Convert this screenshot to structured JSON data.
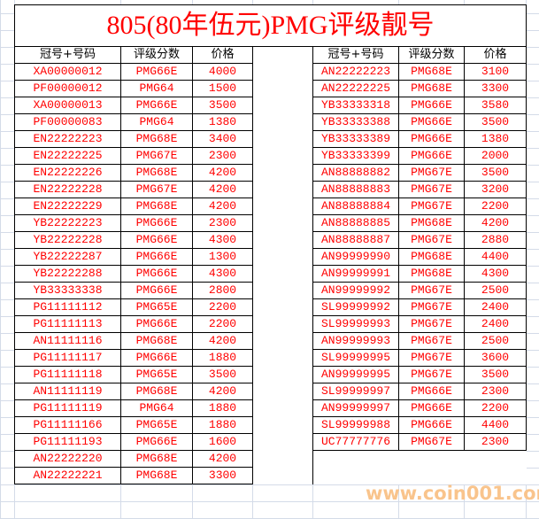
{
  "title": "805(80年伍元)PMG评级靓号",
  "headers": [
    "冠号+号码",
    "评级分数",
    "价格"
  ],
  "left_rows": [
    [
      "XA00000012",
      "PMG66E",
      "4000"
    ],
    [
      "PF00000012",
      "PMG64",
      "1500"
    ],
    [
      "XA00000013",
      "PMG66E",
      "3500"
    ],
    [
      "PF00000083",
      "PMG64",
      "1380"
    ],
    [
      "EN22222223",
      "PMG68E",
      "3400"
    ],
    [
      "EN22222225",
      "PMG67E",
      "2300"
    ],
    [
      "EN22222226",
      "PMG68E",
      "4200"
    ],
    [
      "EN22222228",
      "PMG67E",
      "4200"
    ],
    [
      "EN22222229",
      "PMG68E",
      "4200"
    ],
    [
      "YB22222223",
      "PMG66E",
      "2300"
    ],
    [
      "YB22222228",
      "PMG66E",
      "4300"
    ],
    [
      "YB22222287",
      "PMG66E",
      "1300"
    ],
    [
      "YB22222288",
      "PMG66E",
      "4300"
    ],
    [
      "YB33333338",
      "PMG66E",
      "2800"
    ],
    [
      "PG11111112",
      "PMG65E",
      "2200"
    ],
    [
      "PG11111113",
      "PMG66E",
      "2200"
    ],
    [
      "AN11111116",
      "PMG68E",
      "4200"
    ],
    [
      "PG11111117",
      "PMG66E",
      "1880"
    ],
    [
      "PG11111118",
      "PMG65E",
      "3500"
    ],
    [
      "AN11111119",
      "PMG68E",
      "4200"
    ],
    [
      "PG11111119",
      "PMG64",
      "1880"
    ],
    [
      "PG11111166",
      "PMG65E",
      "1880"
    ],
    [
      "PG11111193",
      "PMG66E",
      "1600"
    ],
    [
      "AN22222220",
      "PMG68E",
      "4200"
    ],
    [
      "AN22222221",
      "PMG68E",
      "3300"
    ]
  ],
  "right_rows": [
    [
      "AN22222223",
      "PMG68E",
      "3100"
    ],
    [
      "AN22222225",
      "PMG68E",
      "3300"
    ],
    [
      "YB33333318",
      "PMG66E",
      "3580"
    ],
    [
      "YB33333388",
      "PMG66E",
      "3500"
    ],
    [
      "YB33333389",
      "PMG66E",
      "1380"
    ],
    [
      "YB33333399",
      "PMG66E",
      "2000"
    ],
    [
      "AN88888882",
      "PMG67E",
      "3500"
    ],
    [
      "AN88888883",
      "PMG67E",
      "3200"
    ],
    [
      "AN88888884",
      "PMG67E",
      "2200"
    ],
    [
      "AN88888885",
      "PMG68E",
      "4200"
    ],
    [
      "AN88888887",
      "PMG67E",
      "2880"
    ],
    [
      "AN99999990",
      "PMG68E",
      "4400"
    ],
    [
      "AN99999991",
      "PMG68E",
      "4300"
    ],
    [
      "AN99999992",
      "PMG67E",
      "2500"
    ],
    [
      "SL99999992",
      "PMG67E",
      "2400"
    ],
    [
      "SL99999993",
      "PMG67E",
      "2400"
    ],
    [
      "AN99999993",
      "PMG67E",
      "2500"
    ],
    [
      "SL99999995",
      "PMG67E",
      "3600"
    ],
    [
      "AN99999995",
      "PMG67E",
      "3500"
    ],
    [
      "SL99999997",
      "PMG66E",
      "2300"
    ],
    [
      "AN99999997",
      "PMG66E",
      "2200"
    ],
    [
      "SL99999988",
      "PMG66E",
      "4400"
    ],
    [
      "UC77777776",
      "PMG67E",
      "2300"
    ]
  ],
  "watermark": "www.coin001.com",
  "colors": {
    "text": "#ff0000",
    "grid": "#d4dbe8",
    "watermark": "#f9c48c"
  }
}
